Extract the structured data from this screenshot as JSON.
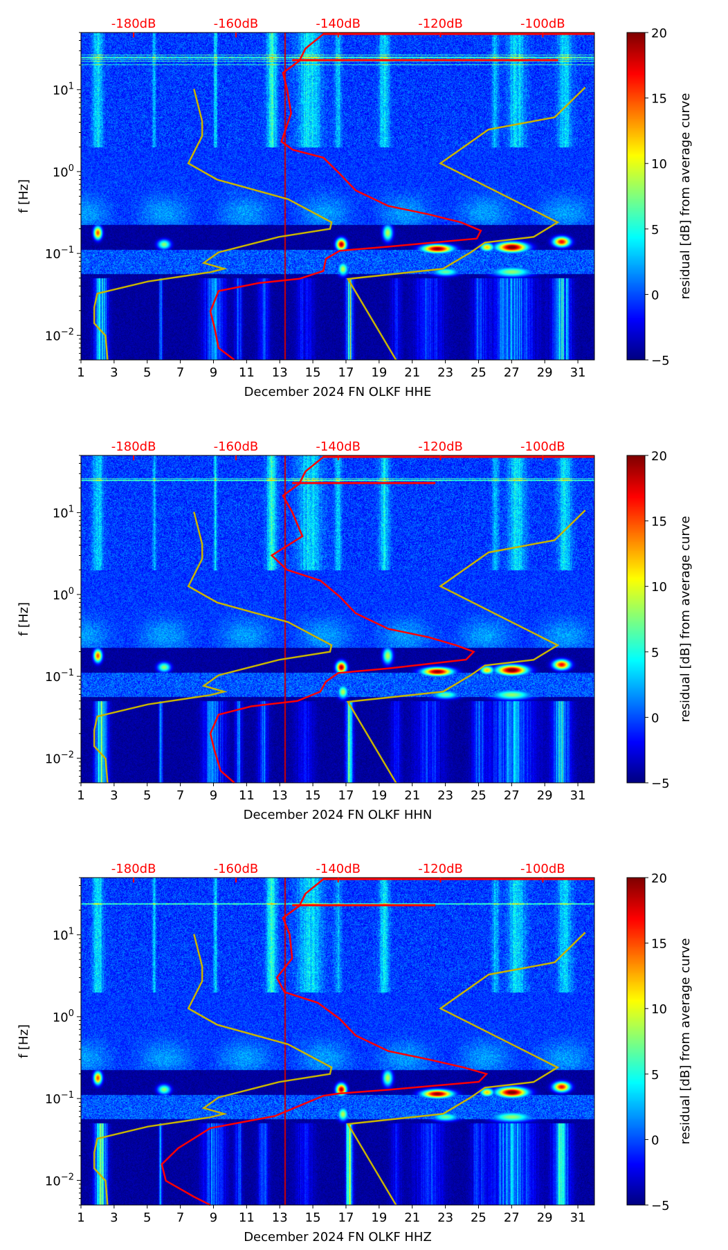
{
  "chart_data": {
    "type": "heatmap",
    "panels": [
      {
        "channel": "HHE",
        "xlabel": "December 2024 FN OLKF  HHE",
        "psd_curve": [
          [
            -142.9,
            47.9
          ],
          [
            -146.4,
            31.8
          ],
          [
            -147.6,
            22.6
          ],
          [
            -150.8,
            16.1
          ],
          [
            -150.0,
            10.2
          ],
          [
            -149.2,
            5.15
          ],
          [
            -151.1,
            2.33
          ],
          [
            -148.9,
            1.85
          ],
          [
            -142.9,
            1.48
          ],
          [
            -139.7,
            0.94
          ],
          [
            -136.6,
            0.59
          ],
          [
            -130.2,
            0.38
          ],
          [
            -122.3,
            0.3
          ],
          [
            -116.0,
            0.24
          ],
          [
            -112.1,
            0.19
          ],
          [
            -112.9,
            0.152
          ],
          [
            -130.2,
            0.121
          ],
          [
            -139.7,
            0.108
          ],
          [
            -142.4,
            0.086
          ],
          [
            -142.9,
            0.061
          ],
          [
            -147.6,
            0.049
          ],
          [
            -155.5,
            0.0435
          ],
          [
            -163.4,
            0.0347
          ],
          [
            -165.0,
            0.0196
          ],
          [
            -164.2,
            0.0125
          ],
          [
            -163.4,
            0.007
          ],
          [
            -160.3,
            0.005
          ]
        ],
        "psd_spike": {
          "freq": 23,
          "db": -97
        }
      },
      {
        "channel": "HHN",
        "xlabel": "December 2024 FN OLKF  HHN",
        "psd_curve": [
          [
            -142.9,
            47.9
          ],
          [
            -146.4,
            31.8
          ],
          [
            -147.6,
            22.6
          ],
          [
            -150.8,
            16.1
          ],
          [
            -149.0,
            10.2
          ],
          [
            -147.0,
            5.15
          ],
          [
            -153.0,
            3.0
          ],
          [
            -150.0,
            2.0
          ],
          [
            -143.5,
            1.48
          ],
          [
            -139.7,
            0.94
          ],
          [
            -136.6,
            0.59
          ],
          [
            -130.2,
            0.38
          ],
          [
            -122.3,
            0.3
          ],
          [
            -117.0,
            0.24
          ],
          [
            -113.5,
            0.2
          ],
          [
            -115.0,
            0.16
          ],
          [
            -130.2,
            0.125
          ],
          [
            -140.0,
            0.11
          ],
          [
            -142.4,
            0.086
          ],
          [
            -143.5,
            0.065
          ],
          [
            -148.0,
            0.05
          ],
          [
            -157.0,
            0.043
          ],
          [
            -163.4,
            0.034
          ],
          [
            -165.0,
            0.02
          ],
          [
            -164.2,
            0.0125
          ],
          [
            -163.0,
            0.007
          ],
          [
            -160.3,
            0.005
          ]
        ],
        "psd_spike": {
          "freq": 23,
          "db": -121
        }
      },
      {
        "channel": "HHZ",
        "xlabel": "December 2024 FN OLKF  HHZ",
        "psd_curve": [
          [
            -142.9,
            47.9
          ],
          [
            -146.4,
            31.8
          ],
          [
            -147.6,
            22.6
          ],
          [
            -150.8,
            16.1
          ],
          [
            -149.5,
            10.2
          ],
          [
            -149.0,
            5.15
          ],
          [
            -152.0,
            3.0
          ],
          [
            -150.5,
            2.0
          ],
          [
            -144.0,
            1.48
          ],
          [
            -139.7,
            0.94
          ],
          [
            -136.6,
            0.59
          ],
          [
            -130.2,
            0.38
          ],
          [
            -122.3,
            0.3
          ],
          [
            -115.5,
            0.24
          ],
          [
            -111.0,
            0.2
          ],
          [
            -112.5,
            0.16
          ],
          [
            -130.2,
            0.128
          ],
          [
            -140.0,
            0.115
          ],
          [
            -142.9,
            0.108
          ],
          [
            -152.4,
            0.061
          ],
          [
            -165.0,
            0.0435
          ],
          [
            -171.3,
            0.0247
          ],
          [
            -174.5,
            0.0157
          ],
          [
            -173.7,
            0.0099
          ],
          [
            -168.2,
            0.0063
          ],
          [
            -165.0,
            0.005
          ]
        ],
        "psd_spike": {
          "freq": 23,
          "db": -121
        }
      }
    ],
    "nlnm": [
      [
        -168.2,
        10.2
      ],
      [
        -166.6,
        4.1
      ],
      [
        -166.6,
        2.73
      ],
      [
        -169.3,
        1.26
      ],
      [
        -163.7,
        0.8
      ],
      [
        -149.8,
        0.46
      ],
      [
        -141.3,
        0.24
      ],
      [
        -141.6,
        0.2
      ],
      [
        -151.6,
        0.159
      ],
      [
        -163.4,
        0.103
      ],
      [
        -166.3,
        0.0765
      ],
      [
        -162.3,
        0.065
      ],
      [
        -165.0,
        0.059
      ],
      [
        -177.2,
        0.0454
      ],
      [
        -187.1,
        0.0323
      ],
      [
        -187.7,
        0.0219
      ],
      [
        -187.7,
        0.014
      ],
      [
        -185.5,
        0.0099
      ],
      [
        -185.1,
        0.005
      ]
    ],
    "nhnm": [
      [
        -91.7,
        10.7
      ],
      [
        -97.7,
        4.6
      ],
      [
        -110.6,
        3.27
      ],
      [
        -120.0,
        1.26
      ],
      [
        -97.1,
        0.24
      ],
      [
        -101.8,
        0.159
      ],
      [
        -111.3,
        0.136
      ],
      [
        -114.1,
        0.103
      ],
      [
        -119.5,
        0.065
      ],
      [
        -138.1,
        0.0488
      ],
      [
        -128.7,
        0.005
      ]
    ],
    "x_day_range": [
      1,
      32
    ],
    "x_ticks": [
      "1",
      "3",
      "5",
      "7",
      "9",
      "11",
      "13",
      "15",
      "17",
      "19",
      "21",
      "23",
      "25",
      "27",
      "29",
      "31"
    ],
    "x_tick_values": [
      1,
      3,
      5,
      7,
      9,
      11,
      13,
      15,
      17,
      19,
      21,
      23,
      25,
      27,
      29,
      31
    ],
    "top_axis_db_range": [
      -190.3,
      -89.9
    ],
    "top_ticks": [
      "-180dB",
      "-160dB",
      "-140dB",
      "-120dB",
      "-100dB"
    ],
    "top_tick_values": [
      -180,
      -160,
      -140,
      -120,
      -100
    ],
    "ylabel": "f [Hz]",
    "yscale": "log",
    "ylim": [
      0.005,
      50
    ],
    "y_ticks": [
      {
        "base": "10",
        "exp": "1",
        "value": 10
      },
      {
        "base": "10",
        "exp": "0",
        "value": 1
      },
      {
        "base": "10",
        "exp": "−1",
        "value": 0.1
      },
      {
        "base": "10",
        "exp": "−2",
        "value": 0.01
      }
    ],
    "colorbar": {
      "label": "residual [dB] from average curve",
      "range": [
        -5,
        20
      ],
      "ticks": [
        "20",
        "15",
        "10",
        "5",
        "0",
        "−5"
      ],
      "tick_values": [
        20,
        15,
        10,
        5,
        0,
        -5
      ],
      "colormap": "jet"
    },
    "colors": {
      "psd_curve": "#ff0000",
      "noise_models": "#c8b400",
      "top_axis": "#ff0000"
    }
  }
}
